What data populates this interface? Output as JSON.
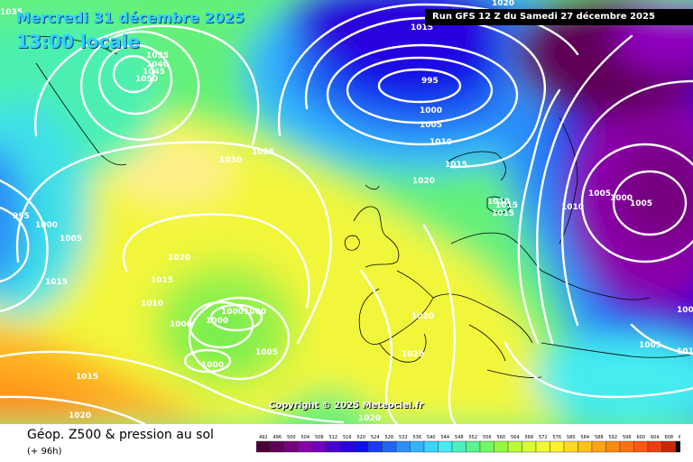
{
  "header": {
    "date": "Mercredi 31 décembre 2025",
    "local_time": "13:00 locale",
    "run": "Run GFS 12 Z du Samedi 27 décembre 2025"
  },
  "copyright": "Copyright © 2025 Meteociel.fr",
  "footer": {
    "title": "Géop. Z500 & pression au sol",
    "lead_time": "(+ 96h)"
  },
  "pressure_labels": [
    "1035",
    "1020",
    "1015",
    "1035",
    "1040",
    "1045",
    "1050",
    "995",
    "1000",
    "1005",
    "1030",
    "1025",
    "1000",
    "1005",
    "1010",
    "1015",
    "1020",
    "995",
    "1000",
    "1005",
    "1010",
    "1015",
    "1015",
    "1015",
    "1020",
    "1020",
    "1015",
    "1010",
    "1000",
    "1000",
    "10001000",
    "1005",
    "1000",
    "1015",
    "1020",
    "1020",
    "1020",
    "1005",
    "1010",
    "1005",
    "101",
    "100"
  ],
  "legend": {
    "values": [
      "492",
      "496",
      "500",
      "504",
      "508",
      "512",
      "516",
      "520",
      "524",
      "528",
      "532",
      "536",
      "540",
      "544",
      "548",
      "552",
      "556",
      "560",
      "564",
      "568",
      "572",
      "576",
      "580",
      "584",
      "588",
      "592",
      "596",
      "600",
      "604",
      "608",
      "612"
    ],
    "colors": [
      "#4a0036",
      "#5e0056",
      "#760080",
      "#8a00a8",
      "#7000c0",
      "#4a00d0",
      "#2a00dc",
      "#1010e8",
      "#1a3cf0",
      "#2266f4",
      "#2a90f8",
      "#30b4fc",
      "#38d6ff",
      "#44ecf0",
      "#4cf0c0",
      "#58f490",
      "#70f860",
      "#94fa40",
      "#b8fc38",
      "#d8fc38",
      "#f0f838",
      "#fff030",
      "#ffd828",
      "#ffc020",
      "#ffa418",
      "#ff8a10",
      "#ff7010",
      "#ff5810",
      "#e84010",
      "#c82808",
      "#000000"
    ]
  }
}
